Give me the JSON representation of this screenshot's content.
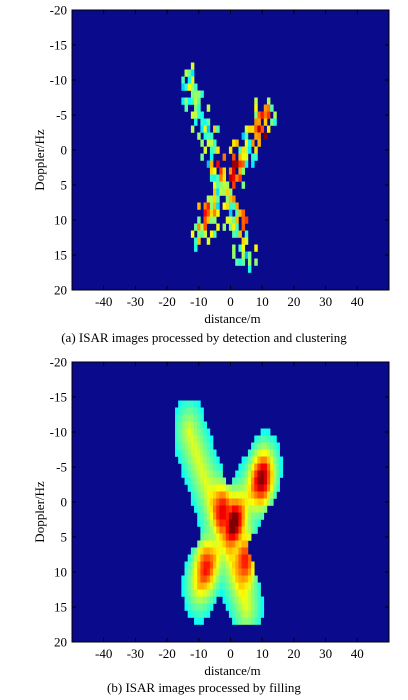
{
  "chart_data": [
    {
      "type": "heatmap",
      "caption": "(a) ISAR images processed by detection and clustering",
      "xlabel": "distance/m",
      "ylabel": "Doppler/Hz",
      "xlim": [
        -50,
        50
      ],
      "ylim": [
        -20,
        20
      ],
      "y_inverted": true,
      "x_ticks": [
        -40,
        -30,
        -20,
        -10,
        0,
        10,
        20,
        30,
        40
      ],
      "y_ticks": [
        -20,
        -15,
        -10,
        -5,
        0,
        5,
        10,
        15,
        20
      ],
      "colormap": "jet",
      "background_color": "#0a0a8c",
      "style": "speckled",
      "arms": [
        {
          "from": [
            -13,
            -10
          ],
          "to": [
            5,
            15
          ]
        },
        {
          "from": [
            11,
            -5
          ],
          "to": [
            -10,
            12
          ]
        }
      ],
      "hotspots": [
        {
          "x": 1,
          "y": 3,
          "level": 0.9
        },
        {
          "x": 10,
          "y": -3,
          "level": 0.85
        },
        {
          "x": 5,
          "y": 8,
          "level": 0.8
        },
        {
          "x": -2,
          "y": 1,
          "level": 0.75
        },
        {
          "x": -8,
          "y": 9,
          "level": 0.6
        }
      ]
    },
    {
      "type": "heatmap",
      "caption": "(b) ISAR images processed by filling",
      "xlabel": "distance/m",
      "ylabel": "Doppler/Hz",
      "xlim": [
        -50,
        50
      ],
      "ylim": [
        -20,
        20
      ],
      "y_inverted": true,
      "x_ticks": [
        -40,
        -30,
        -20,
        -10,
        0,
        10,
        20,
        30,
        40
      ],
      "y_ticks": [
        -20,
        -15,
        -10,
        -5,
        0,
        5,
        10,
        15,
        20
      ],
      "colormap": "jet",
      "background_color": "#0a0a8c",
      "style": "filled",
      "arms": [
        {
          "from": [
            -13,
            -10
          ],
          "to": [
            5,
            15
          ]
        },
        {
          "from": [
            11,
            -5
          ],
          "to": [
            -10,
            12
          ]
        }
      ],
      "hotspots": [
        {
          "x": 1,
          "y": 3,
          "level": 0.95
        },
        {
          "x": 10,
          "y": -3,
          "level": 0.85
        },
        {
          "x": 5,
          "y": 8,
          "level": 0.85
        },
        {
          "x": -2,
          "y": 1,
          "level": 0.8
        },
        {
          "x": -8,
          "y": 9,
          "level": 0.6
        }
      ]
    }
  ]
}
